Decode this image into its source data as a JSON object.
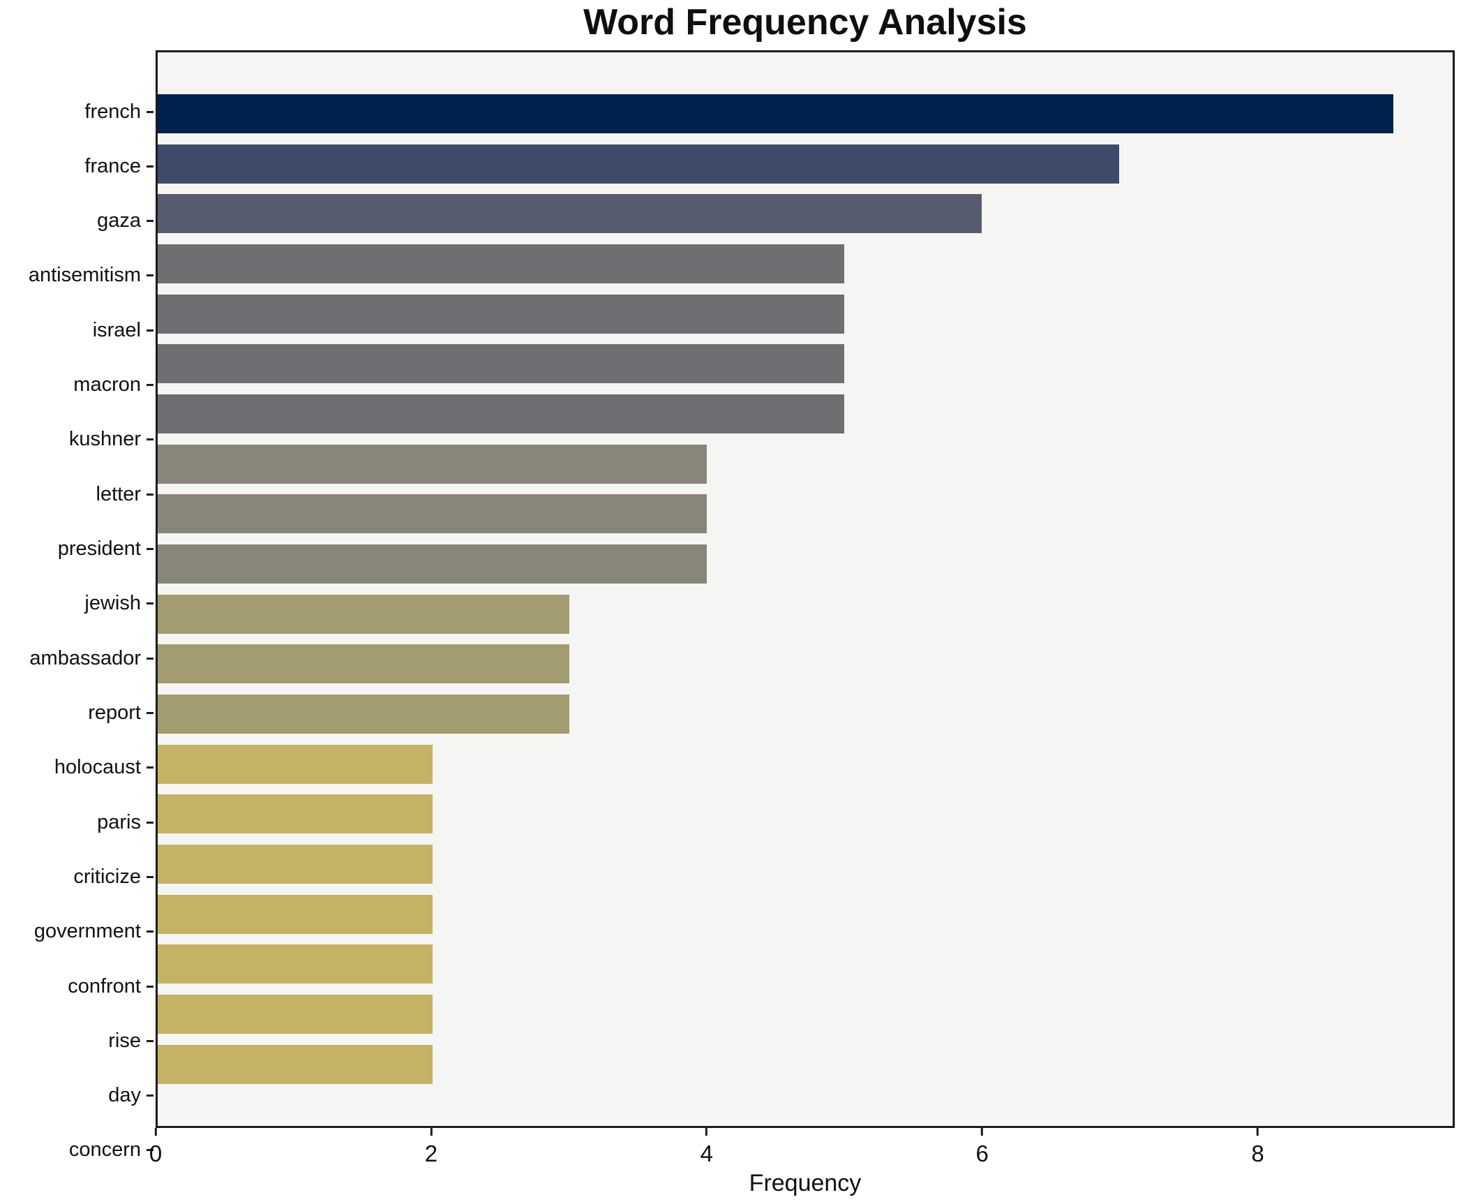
{
  "chart_data": {
    "type": "bar",
    "orientation": "horizontal",
    "title": "Word Frequency Analysis",
    "xlabel": "Frequency",
    "ylabel": "",
    "categories": [
      "french",
      "france",
      "gaza",
      "antisemitism",
      "israel",
      "macron",
      "kushner",
      "letter",
      "president",
      "jewish",
      "ambassador",
      "report",
      "holocaust",
      "paris",
      "criticize",
      "government",
      "confront",
      "rise",
      "day",
      "concern"
    ],
    "values": [
      9,
      7,
      6,
      5,
      5,
      5,
      5,
      4,
      4,
      4,
      3,
      3,
      3,
      2,
      2,
      2,
      2,
      2,
      2,
      2
    ],
    "bar_colors": [
      "#00224f",
      "#3e4a6a",
      "#565c6d",
      "#6e6f72",
      "#6e6f72",
      "#6e6f72",
      "#6e6f72",
      "#88867b",
      "#88867b",
      "#88867b",
      "#a49c71",
      "#a49c71",
      "#a49c71",
      "#c4b365",
      "#c4b365",
      "#c4b365",
      "#c4b365",
      "#c4b365",
      "#c4b365",
      "#c4b365"
    ],
    "xticks": [
      0,
      2,
      4,
      6,
      8
    ],
    "xlim": [
      0,
      9.43
    ],
    "grid": false,
    "legend_position": "none",
    "plot_bg": "#f5f5f4",
    "figure_bg": "#ffffff",
    "spine_color": "#1c1c1c",
    "text_color": "#111111"
  }
}
